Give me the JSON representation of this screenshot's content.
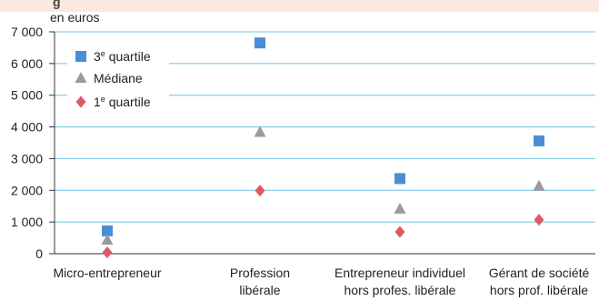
{
  "header": {
    "title_fragment": "g"
  },
  "chart_data": {
    "type": "scatter",
    "unit_label": "en euros",
    "categories": [
      [
        "Micro-entrepreneur"
      ],
      [
        "Profession",
        "libérale"
      ],
      [
        "Entrepreneur individuel",
        "hors profes. libérale"
      ],
      [
        "Gérant de société",
        "hors prof. libérale"
      ]
    ],
    "ylim": [
      0,
      7000
    ],
    "yticks": [
      0,
      1000,
      2000,
      3000,
      4000,
      5000,
      6000,
      7000
    ],
    "ytick_labels": [
      "0",
      "1 000",
      "2 000",
      "3 000",
      "4 000",
      "5 000",
      "6 000",
      "7 000"
    ],
    "grid": true,
    "legend_position": "top-left",
    "series": [
      {
        "name": "3e quartile",
        "name_base": "3",
        "name_sup": "e",
        "name_rest": " quartile",
        "marker": "square",
        "color": "#4a8fd4",
        "values": [
          720,
          6650,
          2370,
          3560
        ]
      },
      {
        "name": "Médiane",
        "marker": "triangle",
        "color": "#9a9a9a",
        "values": [
          430,
          3830,
          1410,
          2130
        ]
      },
      {
        "name": "1e quartile",
        "name_base": "1",
        "name_sup": "e",
        "name_rest": " quartile",
        "marker": "diamond",
        "color": "#dd5a63",
        "values": [
          40,
          1990,
          690,
          1070
        ]
      }
    ]
  }
}
